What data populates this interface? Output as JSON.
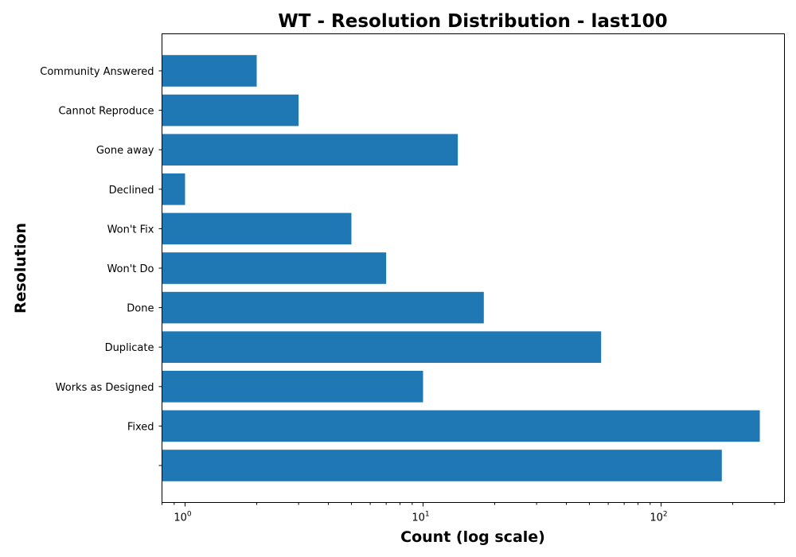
{
  "chart_data": {
    "type": "bar",
    "orientation": "horizontal",
    "title": "WT - Resolution Distribution - last100",
    "xlabel": "Count (log scale)",
    "ylabel": "Resolution",
    "x_scale": "log",
    "xlim": [
      0.8,
      330
    ],
    "x_ticks": [
      {
        "value": 1,
        "base": "10",
        "exp": "0"
      },
      {
        "value": 10,
        "base": "10",
        "exp": "1"
      },
      {
        "value": 100,
        "base": "10",
        "exp": "2"
      }
    ],
    "categories": [
      "Community Answered",
      "Cannot Reproduce",
      "Gone away",
      "Declined",
      "Won't Fix",
      "Won't Do",
      "Done",
      "Duplicate",
      "Works as Designed",
      "Fixed",
      ""
    ],
    "values": [
      2,
      3,
      14,
      1,
      5,
      7,
      18,
      56,
      10,
      260,
      180
    ],
    "bar_color": "#1f77b4",
    "grid": false,
    "legend": "none"
  }
}
